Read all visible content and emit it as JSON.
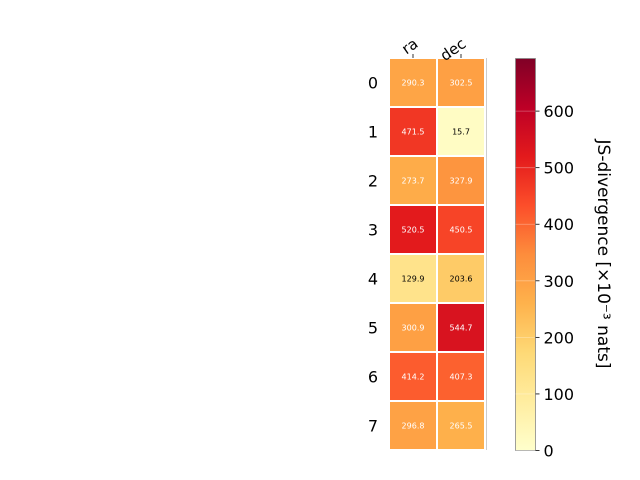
{
  "chart_data": {
    "type": "heatmap",
    "columns": [
      "ra",
      "dec"
    ],
    "rows": [
      "0",
      "1",
      "2",
      "3",
      "4",
      "5",
      "6",
      "7"
    ],
    "values": [
      [
        290.3,
        302.5
      ],
      [
        471.5,
        15.7
      ],
      [
        273.7,
        327.9
      ],
      [
        520.5,
        450.5
      ],
      [
        129.9,
        203.6
      ],
      [
        300.9,
        544.7
      ],
      [
        414.2,
        407.3
      ],
      [
        296.8,
        265.5
      ]
    ],
    "labels": [
      [
        "290.3",
        "302.5"
      ],
      [
        "471.5",
        "15.7"
      ],
      [
        "273.7",
        "327.9"
      ],
      [
        "520.5",
        "450.5"
      ],
      [
        "129.9",
        "203.6"
      ],
      [
        "300.9",
        "544.7"
      ],
      [
        "414.2",
        "407.3"
      ],
      [
        "296.8",
        "265.5"
      ]
    ],
    "colorbar": {
      "label": "JS-divergence [×10⁻³ nats]",
      "min": 0,
      "max": 693,
      "ticks": [
        "0",
        "100",
        "200",
        "300",
        "400",
        "500",
        "600"
      ],
      "colormap": "YlOrRd"
    }
  }
}
